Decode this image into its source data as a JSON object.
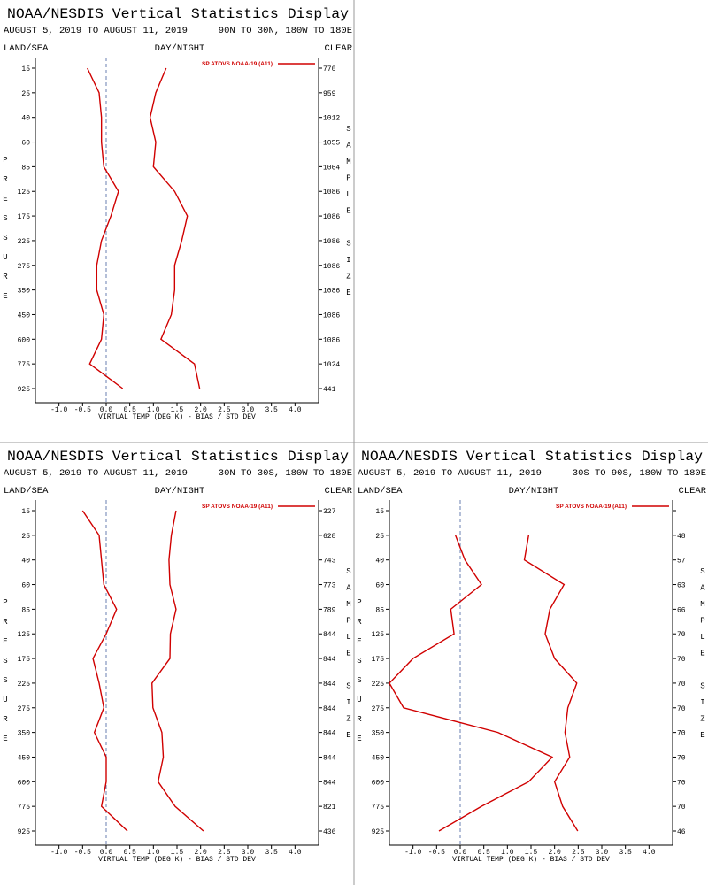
{
  "chart_data": [
    {
      "type": "line",
      "title": "NOAA/NESDIS Vertical Statistics Display",
      "subtitle": "AUGUST 5, 2019 TO AUGUST 11, 2019",
      "region": "90N TO 30N, 180W TO 180E",
      "left_label": "LAND/SEA",
      "center_label": "DAY/NIGHT",
      "right_label": "CLEAR",
      "y_label": "PRESSURE",
      "y2_label": "SAMPLE SIZE",
      "x_label": "VIRTUAL TEMP (DEG K) - BIAS / STD DEV",
      "legend": "SP ATOVS NOAA-19 (A11)",
      "categories": [
        15,
        25,
        40,
        60,
        85,
        125,
        175,
        225,
        275,
        350,
        450,
        600,
        775,
        925
      ],
      "sample_sizes": [
        770,
        959,
        1012,
        1055,
        1064,
        1086,
        1086,
        1086,
        1086,
        1086,
        1086,
        1086,
        1024,
        441
      ],
      "series": [
        {
          "color": "#d00000",
          "values": [
            -0.4,
            -0.15,
            -0.1,
            -0.1,
            -0.05,
            0.26,
            0.1,
            -0.1,
            -0.2,
            -0.2,
            -0.05,
            -0.1,
            -0.35,
            0.35
          ]
        },
        {
          "color": "#d00000",
          "values": [
            1.27,
            1.05,
            0.93,
            1.05,
            1.0,
            1.45,
            1.72,
            1.6,
            1.45,
            1.45,
            1.38,
            1.16,
            1.87,
            1.98
          ]
        }
      ],
      "xlim": [
        -1.5,
        4.5
      ],
      "xticks": [
        {
          "value": -1,
          "label": "-1.0"
        },
        -0.5,
        {
          "value": 0,
          "label": "0.0"
        },
        0.5,
        {
          "value": 1,
          "label": "1.0"
        },
        1.5,
        {
          "value": 2,
          "label": "2.0"
        },
        2.5,
        {
          "value": 3,
          "label": "3.0"
        },
        3.5,
        {
          "value": 4,
          "label": "4.0"
        }
      ]
    },
    {
      "type": "line",
      "title": "NOAA/NESDIS Vertical Statistics Display",
      "subtitle": "AUGUST 5, 2019 TO AUGUST 11, 2019",
      "region": "30N TO 30S, 180W TO 180E",
      "left_label": "LAND/SEA",
      "center_label": "DAY/NIGHT",
      "right_label": "CLEAR",
      "y_label": "PRESSURE",
      "y2_label": "SAMPLE SIZE",
      "x_label": "VIRTUAL TEMP (DEG K) - BIAS / STD DEV",
      "legend": "SP ATOVS NOAA-19 (A11)",
      "categories": [
        15,
        25,
        40,
        60,
        85,
        125,
        175,
        225,
        275,
        350,
        450,
        600,
        775,
        925
      ],
      "sample_sizes": [
        327,
        628,
        743,
        773,
        789,
        844,
        844,
        844,
        844,
        844,
        844,
        844,
        821,
        436
      ],
      "series": [
        {
          "color": "#d00000",
          "values": [
            -0.5,
            -0.15,
            -0.1,
            -0.05,
            0.22,
            0,
            -0.28,
            -0.15,
            -0.05,
            -0.25,
            0,
            0,
            -0.1,
            0.45
          ]
        },
        {
          "color": "#d00000",
          "values": [
            1.48,
            1.38,
            1.33,
            1.35,
            1.48,
            1.36,
            1.35,
            0.97,
            0.99,
            1.18,
            1.21,
            1.1,
            1.46,
            2.06
          ]
        }
      ],
      "xlim": [
        -1.5,
        4.5
      ],
      "xticks": [
        {
          "value": -1,
          "label": "-1.0"
        },
        -0.5,
        {
          "value": 0,
          "label": "0.0"
        },
        0.5,
        {
          "value": 1,
          "label": "1.0"
        },
        1.5,
        {
          "value": 2,
          "label": "2.0"
        },
        2.5,
        {
          "value": 3,
          "label": "3.0"
        },
        3.5,
        {
          "value": 4,
          "label": "4.0"
        }
      ]
    },
    {
      "type": "line",
      "title": "NOAA/NESDIS Vertical Statistics Display",
      "subtitle": "AUGUST 5, 2019 TO AUGUST 11, 2019",
      "region": "30S TO 90S, 180W TO 180E",
      "left_label": "LAND/SEA",
      "center_label": "DAY/NIGHT",
      "right_label": "CLEAR",
      "y_label": "PRESSURE",
      "y2_label": "SAMPLE SIZE",
      "x_label": "VIRTUAL TEMP (DEG K) - BIAS / STD DEV",
      "legend": "SP ATOVS NOAA-19 (A11)",
      "categories": [
        15,
        25,
        40,
        60,
        85,
        125,
        175,
        225,
        275,
        350,
        450,
        600,
        775,
        925
      ],
      "sample_sizes": [
        null,
        48,
        57,
        63,
        66,
        70,
        70,
        70,
        70,
        70,
        70,
        70,
        70,
        46
      ],
      "series": [
        {
          "color": "#d00000",
          "values": [
            null,
            -0.1,
            0.1,
            0.45,
            -0.2,
            -0.13,
            -1.0,
            -1.5,
            -1.2,
            0.8,
            1.95,
            1.45,
            0.45,
            -0.45
          ]
        },
        {
          "color": "#d00000",
          "values": [
            null,
            1.45,
            1.36,
            2.2,
            1.9,
            1.8,
            2.0,
            2.47,
            2.28,
            2.22,
            2.32,
            2.0,
            2.17,
            2.49
          ]
        }
      ],
      "xlim": [
        -1.5,
        4.5
      ],
      "xticks": [
        {
          "value": -1,
          "label": "-1.0"
        },
        -0.5,
        {
          "value": 0,
          "label": "0.0"
        },
        0.5,
        {
          "value": 1,
          "label": "1.0"
        },
        1.5,
        {
          "value": 2,
          "label": "2.0"
        },
        2.5,
        {
          "value": 3,
          "label": "3.0"
        },
        3.5,
        {
          "value": 4,
          "label": "4.0"
        }
      ]
    }
  ]
}
